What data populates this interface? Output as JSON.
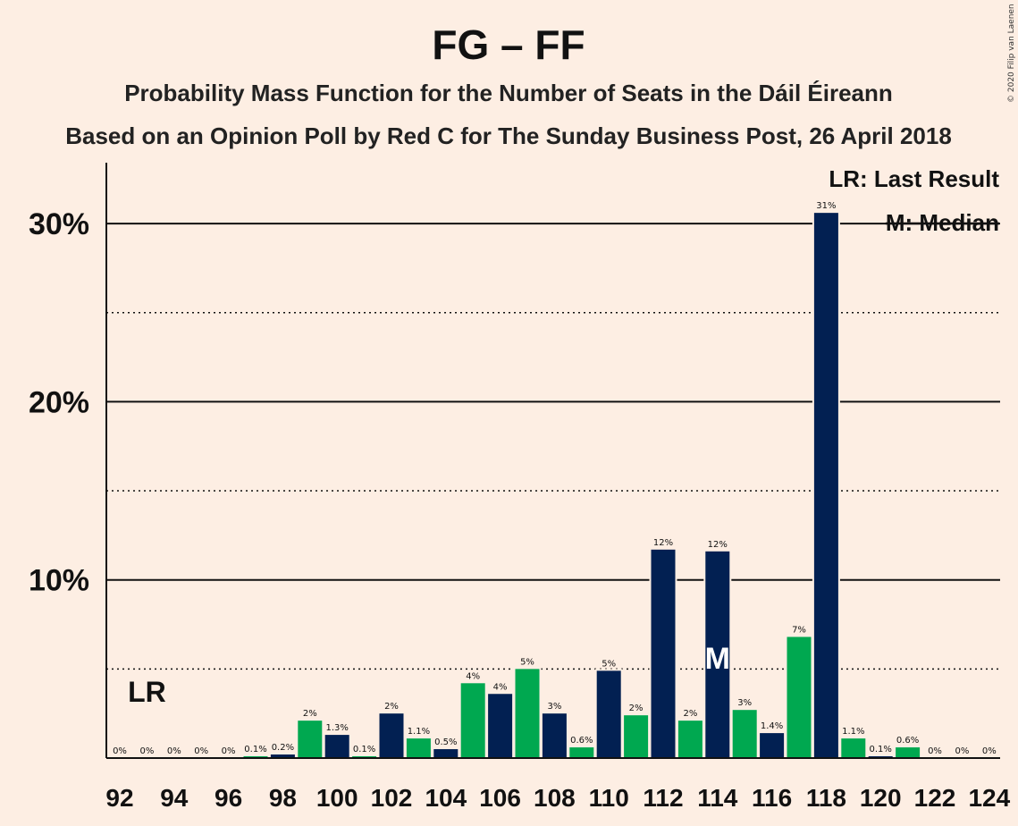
{
  "colors": {
    "background": "#FDEEE3",
    "navy": "#022052",
    "green": "#00A850",
    "text": "#111111"
  },
  "chart_data": {
    "type": "bar",
    "title": "FG – FF",
    "subtitle1": "Probability Mass Function for the Number of Seats in the Dáil Éireann",
    "subtitle2": "Based on an Opinion Poll by Red C for The Sunday Business Post, 26 April 2018",
    "copyright": "© 2020 Filip van Laenen",
    "legend": {
      "lr": "LR: Last Result",
      "median": "M: Median"
    },
    "lr_marker": {
      "label": "LR",
      "seats": 93
    },
    "median_marker": {
      "label": "M",
      "seats": 114
    },
    "ylim": [
      0,
      33
    ],
    "yticks": [
      10,
      20,
      30
    ],
    "ytick_labels": [
      "10%",
      "20%",
      "30%"
    ],
    "minor_gridlines": [
      5,
      15,
      25
    ],
    "x_tick_labels": [
      "92",
      "94",
      "96",
      "98",
      "100",
      "102",
      "104",
      "106",
      "108",
      "110",
      "112",
      "114",
      "116",
      "118",
      "120",
      "122",
      "124"
    ],
    "series": [
      {
        "seats": [
          92,
          93,
          94,
          95,
          96,
          97,
          98,
          99,
          100,
          101,
          102,
          103,
          104,
          105,
          106,
          107,
          108,
          109,
          110,
          111,
          112,
          113,
          114,
          115,
          116,
          117,
          118,
          119,
          120,
          121,
          122,
          123,
          124
        ],
        "values": [
          0,
          0,
          0,
          0,
          0,
          0.1,
          0.2,
          2.1,
          1.3,
          0.1,
          2.5,
          1.1,
          0.5,
          4.2,
          3.6,
          5.0,
          2.5,
          0.6,
          4.9,
          2.4,
          11.7,
          2.1,
          11.6,
          2.7,
          1.4,
          6.8,
          30.6,
          1.1,
          0.1,
          0.6,
          0,
          0,
          0
        ],
        "labels": [
          "0%",
          "0%",
          "0%",
          "0%",
          "0%",
          "0.1%",
          "0.2%",
          "2%",
          "1.3%",
          "0.1%",
          "2%",
          "1.1%",
          "0.5%",
          "4%",
          "4%",
          "5%",
          "3%",
          "0.6%",
          "5%",
          "2%",
          "12%",
          "2%",
          "12%",
          "3%",
          "1.4%",
          "7%",
          "31%",
          "1.1%",
          "0.1%",
          "0.6%",
          "0%",
          "0%",
          "0%"
        ],
        "colors": [
          "navy",
          "green",
          "navy",
          "green",
          "navy",
          "green",
          "navy",
          "green",
          "navy",
          "green",
          "navy",
          "green",
          "navy",
          "green",
          "navy",
          "green",
          "navy",
          "green",
          "navy",
          "green",
          "navy",
          "green",
          "navy",
          "green",
          "navy",
          "green",
          "navy",
          "green",
          "navy",
          "green",
          "navy",
          "green",
          "navy"
        ]
      }
    ]
  }
}
